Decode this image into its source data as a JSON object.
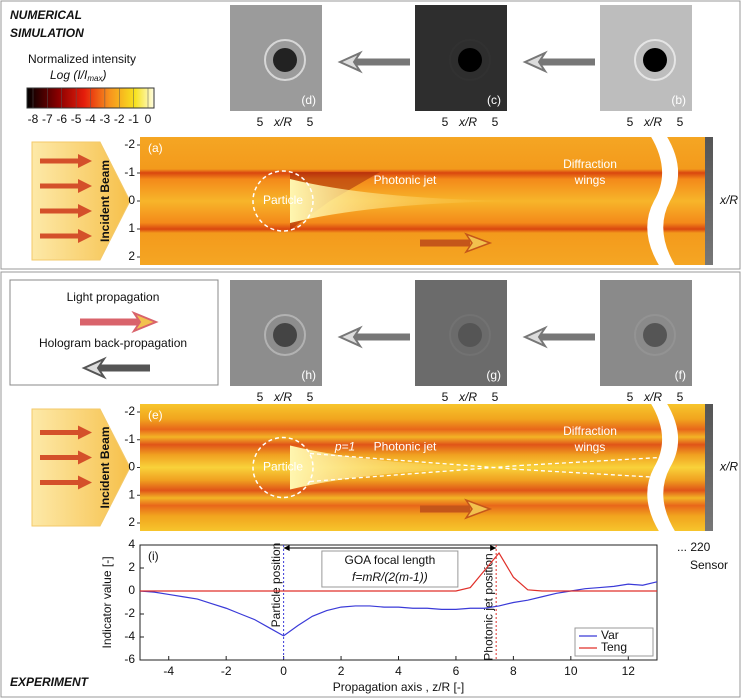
{
  "top": {
    "label_lines": [
      "NUMERICAL",
      "SIMULATION"
    ],
    "insets": [
      {
        "tag": "(d)"
      },
      {
        "tag": "(c)"
      },
      {
        "tag": "(b)"
      }
    ],
    "panel": {
      "tag": "(a)",
      "incident": "Incident Beam",
      "particle": "Particle",
      "jet": "Photonic jet",
      "wings_lines": [
        "Diffraction",
        "wings"
      ],
      "axis_label": "x/R"
    }
  },
  "colorbar": {
    "title": "Normalized intensity",
    "subtitle": "Log (I/I",
    "subtitle_sub": "max",
    "subtitle_end": ")",
    "ticks": [
      -8,
      -7,
      -6,
      -5,
      -4,
      -3,
      -2,
      -1,
      0
    ]
  },
  "inset_axis": {
    "tick": "5",
    "label": "x/R"
  },
  "image_yticks": [
    -2,
    -1,
    0,
    1,
    2
  ],
  "legend_box": {
    "light": "Light propagation",
    "holo": "Hologram back-propagation"
  },
  "bottom": {
    "label": "EXPERIMENT",
    "insets": [
      {
        "tag": "(h)"
      },
      {
        "tag": "(g)"
      },
      {
        "tag": "(f)"
      }
    ],
    "panel": {
      "tag": "(e)",
      "incident": "Incident Beam",
      "particle": "Particle",
      "p_label": "p=1",
      "jet": "Photonic jet",
      "wings_lines": [
        "Diffraction",
        "wings"
      ],
      "axis_label": "x/R"
    },
    "sensor_count": "... 220",
    "sensor": "Sensor"
  },
  "chart_data": {
    "type": "line",
    "panel_label": "(i)",
    "xlabel": "Propagation axis , z/R [-]",
    "ylabel": "Indicator value [-]",
    "x": [
      -5,
      -4.5,
      -4,
      -3.5,
      -3,
      -2.5,
      -2,
      -1.5,
      -1,
      -0.5,
      0,
      0.5,
      1,
      1.5,
      2,
      2.5,
      3,
      3.5,
      4,
      4.5,
      5,
      5.5,
      6,
      6.5,
      7,
      7.5,
      8,
      8.5,
      9,
      9.5,
      10,
      10.5,
      11,
      11.5,
      12,
      12.5,
      13
    ],
    "series": [
      {
        "name": "Var",
        "color": "#3a3ad8",
        "values": [
          0,
          -0.1,
          -0.3,
          -0.5,
          -0.7,
          -1.1,
          -1.5,
          -2.0,
          -2.5,
          -3.2,
          -3.9,
          -3.0,
          -2.2,
          -1.7,
          -1.4,
          -1.3,
          -1.3,
          -1.4,
          -1.4,
          -1.5,
          -1.5,
          -1.6,
          -1.6,
          -1.5,
          -1.5,
          -1.3,
          -1.0,
          -0.8,
          -0.5,
          -0.2,
          0,
          0.2,
          0.3,
          0.4,
          0.6,
          0.5,
          0.8
        ]
      },
      {
        "name": "Teng",
        "color": "#e0302a",
        "values": [
          0,
          0,
          0,
          0,
          0,
          0,
          0,
          0,
          0,
          0,
          0,
          0,
          0,
          0,
          0,
          0,
          0,
          0,
          0,
          0,
          0,
          0,
          0,
          0.3,
          1.8,
          3.3,
          1.2,
          0.1,
          0,
          0,
          0,
          0,
          0,
          0,
          0,
          0,
          0
        ]
      }
    ],
    "xlim": [
      -5,
      13
    ],
    "ylim": [
      -6,
      4
    ],
    "xticks": [
      -4,
      -2,
      0,
      2,
      4,
      6,
      8,
      10,
      12
    ],
    "yticks": [
      -6,
      -4,
      -2,
      0,
      2,
      4
    ],
    "legend": "bottom-right",
    "annotations": [
      {
        "text": "Particle position",
        "x": 0,
        "color": "#3a3ad8"
      },
      {
        "text": "Photonic jet position",
        "x": 7.4,
        "color": "#e0302a"
      }
    ],
    "focal_box": {
      "lines": [
        "GOA focal length",
        "f=mR/(2(m-1))"
      ]
    }
  }
}
